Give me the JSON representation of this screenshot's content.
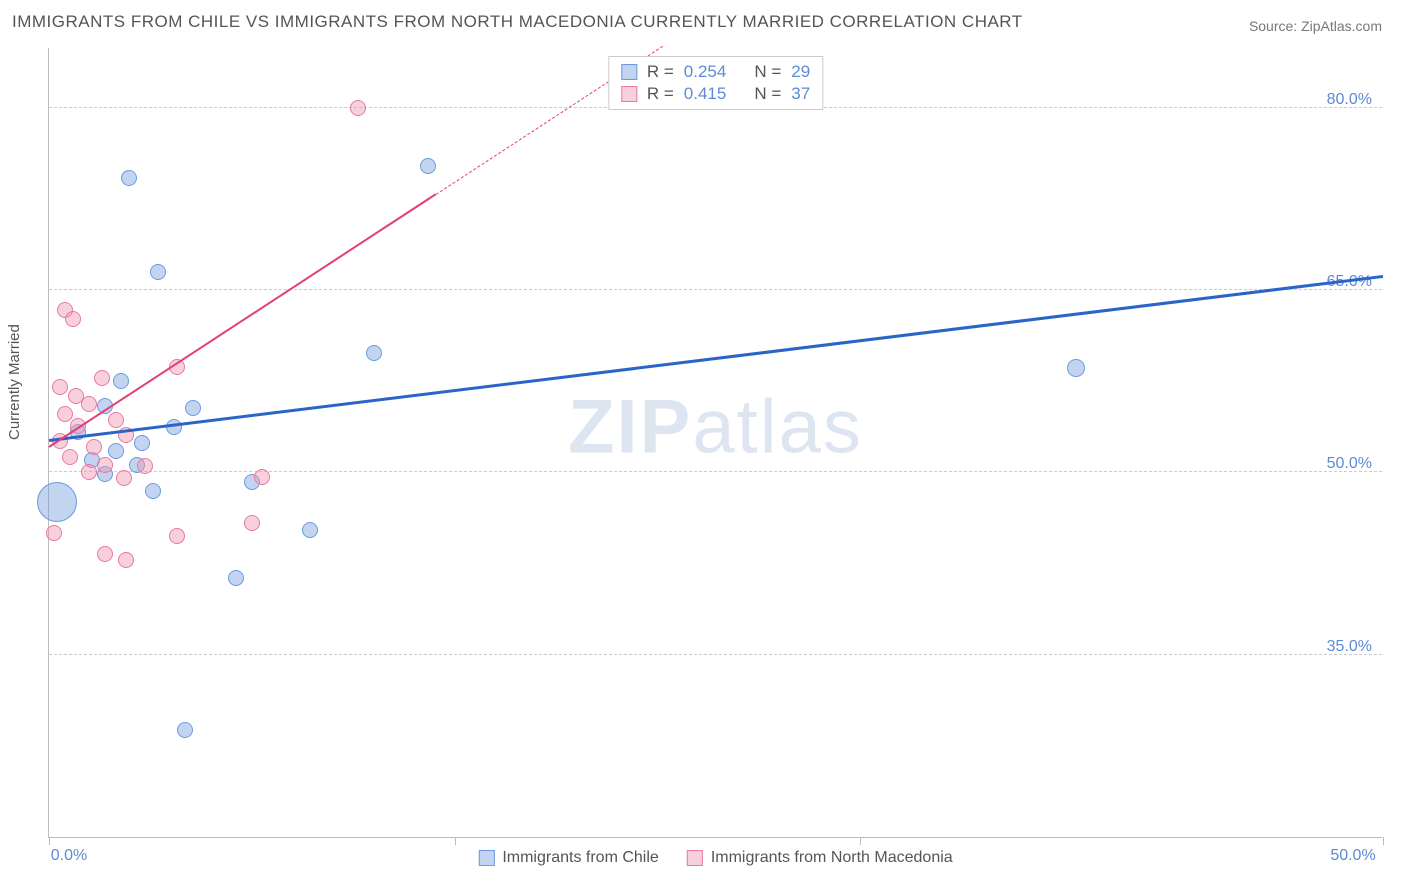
{
  "title": "IMMIGRANTS FROM CHILE VS IMMIGRANTS FROM NORTH MACEDONIA CURRENTLY MARRIED CORRELATION CHART",
  "source": "Source: ZipAtlas.com",
  "ylabel": "Currently Married",
  "watermark": {
    "bold": "ZIP",
    "rest": "atlas"
  },
  "chart": {
    "type": "scatter",
    "xlim": [
      0,
      50
    ],
    "ylim": [
      20,
      85
    ],
    "xticks": [
      0,
      15.2,
      30.4,
      50
    ],
    "xtick_labels": {
      "0": "0.0%",
      "50": "50.0%"
    },
    "yticks": [
      35,
      50,
      65,
      80
    ],
    "ytick_labels": {
      "35": "35.0%",
      "50": "50.0%",
      "65": "65.0%",
      "80": "80.0%"
    },
    "y_gridlines": [
      35,
      50,
      65,
      80
    ],
    "grid_color": "#cccccc",
    "background_color": "#ffffff",
    "series": [
      {
        "id": "chile",
        "label": "Immigrants from Chile",
        "fill": "rgba(120,160,220,0.45)",
        "stroke": "#6a9be0",
        "trend_color": "#2b64c9",
        "trend_width": 3,
        "trend_dash": "none",
        "R_label": "R =",
        "R": "0.254",
        "N_label": "N =",
        "N": "29",
        "trend": {
          "x1": 0,
          "y1": 52.5,
          "x2": 50,
          "y2": 66.0
        },
        "points": [
          {
            "x": 0.3,
            "y": 47.6,
            "r": 20
          },
          {
            "x": 3.9,
            "y": 48.5,
            "r": 8
          },
          {
            "x": 7.6,
            "y": 49.2,
            "r": 8
          },
          {
            "x": 3.0,
            "y": 74.2,
            "r": 8
          },
          {
            "x": 4.1,
            "y": 66.5,
            "r": 8
          },
          {
            "x": 14.2,
            "y": 75.2,
            "r": 8
          },
          {
            "x": 12.2,
            "y": 59.8,
            "r": 8
          },
          {
            "x": 5.4,
            "y": 55.3,
            "r": 8
          },
          {
            "x": 2.1,
            "y": 55.5,
            "r": 8
          },
          {
            "x": 4.7,
            "y": 53.7,
            "r": 8
          },
          {
            "x": 1.1,
            "y": 53.3,
            "r": 8
          },
          {
            "x": 2.5,
            "y": 51.8,
            "r": 8
          },
          {
            "x": 1.6,
            "y": 51.0,
            "r": 8
          },
          {
            "x": 3.3,
            "y": 50.6,
            "r": 8
          },
          {
            "x": 9.8,
            "y": 45.3,
            "r": 8
          },
          {
            "x": 7.0,
            "y": 41.3,
            "r": 8
          },
          {
            "x": 5.1,
            "y": 28.8,
            "r": 8
          },
          {
            "x": 38.5,
            "y": 58.6,
            "r": 9
          },
          {
            "x": 2.7,
            "y": 57.5,
            "r": 8
          },
          {
            "x": 2.1,
            "y": 49.9,
            "r": 8
          },
          {
            "x": 3.5,
            "y": 52.4,
            "r": 8
          }
        ]
      },
      {
        "id": "macedonia",
        "label": "Immigrants from North Macedonia",
        "fill": "rgba(240,150,175,0.45)",
        "stroke": "#e97aa0",
        "trend_color": "#e43e75",
        "trend_width": 2.5,
        "trend_dash": "dashed",
        "R_label": "R =",
        "R": "0.415",
        "N_label": "N =",
        "N": "37",
        "trend": {
          "x1": 0,
          "y1": 52.0,
          "x2": 23,
          "y2": 85.0
        },
        "trend_solid_until_x": 14.5,
        "points": [
          {
            "x": 11.6,
            "y": 80.0,
            "r": 8
          },
          {
            "x": 0.6,
            "y": 63.4,
            "r": 8
          },
          {
            "x": 0.9,
            "y": 62.6,
            "r": 8
          },
          {
            "x": 4.8,
            "y": 58.7,
            "r": 8
          },
          {
            "x": 2.0,
            "y": 57.8,
            "r": 8
          },
          {
            "x": 0.4,
            "y": 57.0,
            "r": 8
          },
          {
            "x": 1.0,
            "y": 56.3,
            "r": 8
          },
          {
            "x": 1.5,
            "y": 55.6,
            "r": 8
          },
          {
            "x": 0.6,
            "y": 54.8,
            "r": 8
          },
          {
            "x": 2.5,
            "y": 54.3,
            "r": 8
          },
          {
            "x": 1.1,
            "y": 53.8,
            "r": 8
          },
          {
            "x": 2.9,
            "y": 53.1,
            "r": 8
          },
          {
            "x": 0.4,
            "y": 52.6,
            "r": 8
          },
          {
            "x": 1.7,
            "y": 52.1,
            "r": 8
          },
          {
            "x": 0.8,
            "y": 51.3,
            "r": 8
          },
          {
            "x": 2.1,
            "y": 50.6,
            "r": 8
          },
          {
            "x": 3.6,
            "y": 50.5,
            "r": 8
          },
          {
            "x": 1.5,
            "y": 50.0,
            "r": 8
          },
          {
            "x": 2.8,
            "y": 49.5,
            "r": 8
          },
          {
            "x": 8.0,
            "y": 49.6,
            "r": 8
          },
          {
            "x": 7.6,
            "y": 45.8,
            "r": 8
          },
          {
            "x": 4.8,
            "y": 44.8,
            "r": 8
          },
          {
            "x": 2.1,
            "y": 43.3,
            "r": 8
          },
          {
            "x": 2.9,
            "y": 42.8,
            "r": 8
          },
          {
            "x": 0.2,
            "y": 45.0,
            "r": 8
          }
        ]
      }
    ]
  }
}
